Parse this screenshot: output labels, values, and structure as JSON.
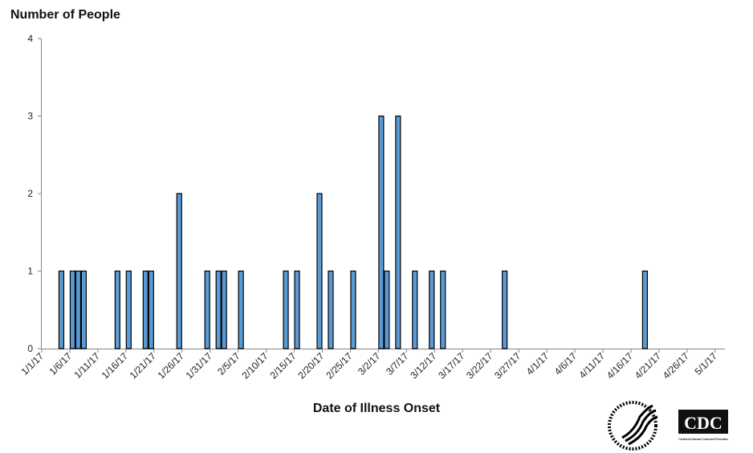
{
  "chart_data": {
    "type": "bar",
    "title": "",
    "ylabel": "Number of People",
    "xlabel": "Date of Illness Onset",
    "ylim": [
      0,
      4
    ],
    "yticks": [
      0,
      1,
      2,
      3,
      4
    ],
    "xlim": [
      "1/1/17",
      "5/1/17"
    ],
    "xticks": [
      "1/1/17",
      "1/6/17",
      "1/11/17",
      "1/16/17",
      "1/21/17",
      "1/26/17",
      "1/31/17",
      "2/5/17",
      "2/10/17",
      "2/15/17",
      "2/20/17",
      "2/25/17",
      "3/2/17",
      "3/7/17",
      "3/12/17",
      "3/17/17",
      "3/22/17",
      "3/27/17",
      "4/1/17",
      "4/6/17",
      "4/11/17",
      "4/16/17",
      "4/21/17",
      "4/26/17",
      "5/1/17"
    ],
    "grid": false,
    "bar_color": "#5b9bd5",
    "x": [
      "1/4/17",
      "1/6/17",
      "1/7/17",
      "1/8/17",
      "1/14/17",
      "1/16/17",
      "1/19/17",
      "1/20/17",
      "1/25/17",
      "1/30/17",
      "2/1/17",
      "2/2/17",
      "2/5/17",
      "2/13/17",
      "2/15/17",
      "2/19/17",
      "2/21/17",
      "2/25/17",
      "3/2/17",
      "3/3/17",
      "3/5/17",
      "3/8/17",
      "3/11/17",
      "3/13/17",
      "3/24/17",
      "4/18/17"
    ],
    "values": [
      1,
      1,
      1,
      1,
      1,
      1,
      1,
      1,
      2,
      1,
      1,
      1,
      1,
      1,
      1,
      2,
      1,
      1,
      3,
      1,
      3,
      1,
      1,
      1,
      1,
      1
    ]
  },
  "logos": {
    "hhs": "Department of Health & Human Services USA",
    "cdc": "CDC",
    "cdc_tagline": "Centers for Disease Control and Prevention"
  }
}
